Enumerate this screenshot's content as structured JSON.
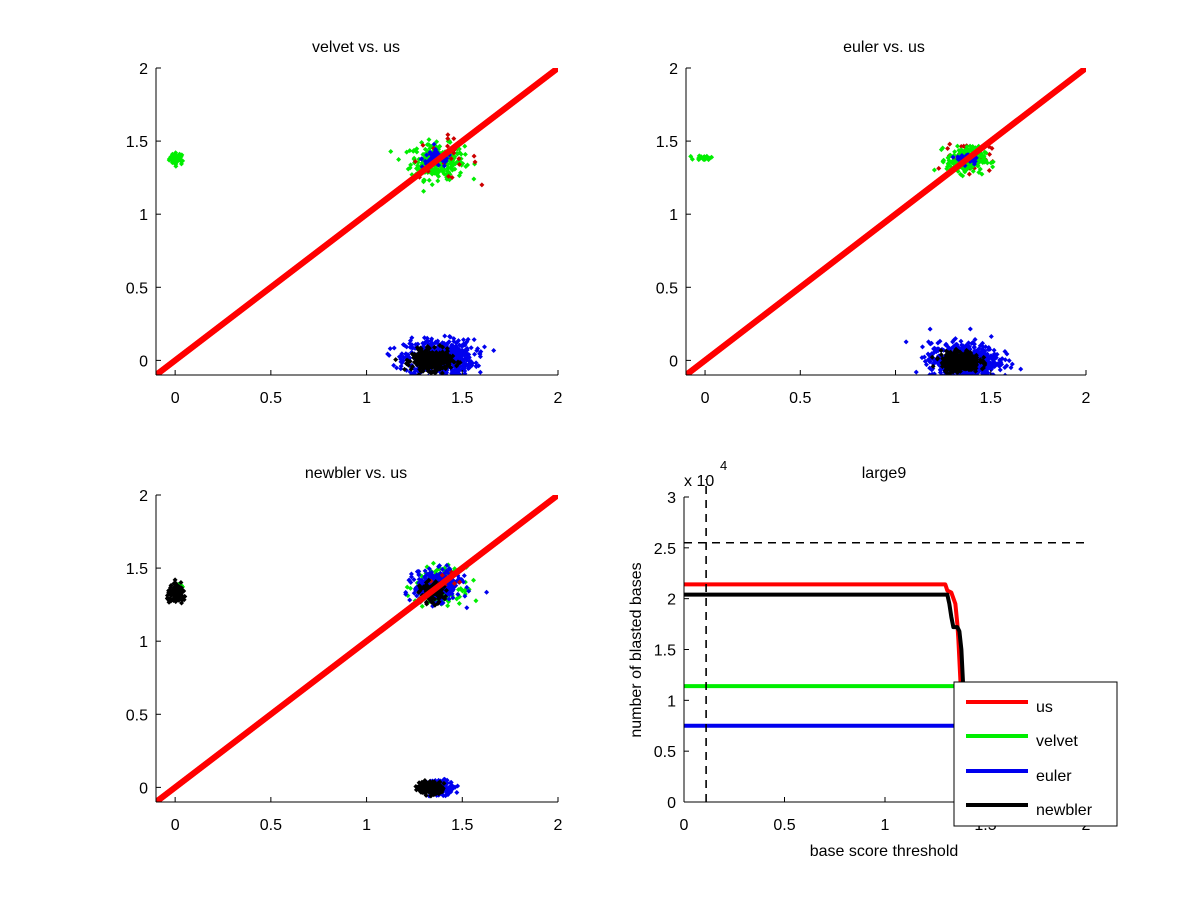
{
  "chart_data": [
    {
      "type": "scatter",
      "id": "velvet-vs-us",
      "title": "velvet vs. us",
      "xlabel": "",
      "ylabel": "",
      "xlim": [
        -0.1,
        2
      ],
      "ylim": [
        -0.1,
        2
      ],
      "xticks": [
        0,
        0.5,
        1,
        1.5,
        2
      ],
      "yticks": [
        0,
        0.5,
        1,
        1.5,
        2
      ],
      "xtick_labels": [
        "0",
        "0.5",
        "1",
        "1.5",
        "2"
      ],
      "ytick_labels": [
        "0",
        "0.5",
        "1",
        "1.5",
        "2"
      ],
      "grid": false,
      "diagonal": {
        "color": "#ff0000",
        "from": [
          -0.1,
          -0.1
        ],
        "to": [
          2,
          2
        ]
      },
      "clusters": [
        {
          "series": "velvet",
          "color": "#00ee00",
          "center": [
            0.01,
            1.38
          ],
          "spread": [
            0.02,
            0.02
          ],
          "count": 40
        },
        {
          "series": "velvet",
          "color": "#00ee00",
          "center": [
            1.37,
            1.36
          ],
          "spread": [
            0.07,
            0.06
          ],
          "count": 260
        },
        {
          "series": "us",
          "color": "#cc0000",
          "center": [
            1.4,
            1.38
          ],
          "spread": [
            0.09,
            0.07
          ],
          "count": 25
        },
        {
          "series": "euler",
          "color": "#0000ee",
          "center": [
            1.37,
            1.38
          ],
          "spread": [
            0.04,
            0.03
          ],
          "count": 70
        },
        {
          "series": "euler",
          "color": "#0000ee",
          "center": [
            1.38,
            0.02
          ],
          "spread": [
            0.09,
            0.06
          ],
          "count": 650
        },
        {
          "series": "newbler",
          "color": "#000000",
          "center": [
            1.34,
            0.0
          ],
          "spread": [
            0.05,
            0.035
          ],
          "count": 350
        }
      ]
    },
    {
      "type": "scatter",
      "id": "euler-vs-us",
      "title": "euler vs. us",
      "xlabel": "",
      "ylabel": "",
      "xlim": [
        -0.1,
        2
      ],
      "ylim": [
        -0.1,
        2
      ],
      "xticks": [
        0,
        0.5,
        1,
        1.5,
        2
      ],
      "yticks": [
        0,
        0.5,
        1,
        1.5,
        2
      ],
      "xtick_labels": [
        "0",
        "0.5",
        "1",
        "1.5",
        "2"
      ],
      "ytick_labels": [
        "0",
        "0.5",
        "1",
        "1.5",
        "2"
      ],
      "grid": false,
      "diagonal": {
        "color": "#ff0000",
        "from": [
          -0.1,
          -0.1
        ],
        "to": [
          2,
          2
        ]
      },
      "clusters": [
        {
          "series": "velvet",
          "color": "#00ee00",
          "center": [
            0.0,
            1.385
          ],
          "spread": [
            0.025,
            0.008
          ],
          "count": 25
        },
        {
          "series": "us",
          "color": "#cc0000",
          "center": [
            1.38,
            1.39
          ],
          "spread": [
            0.06,
            0.05
          ],
          "count": 60
        },
        {
          "series": "velvet",
          "color": "#00ee00",
          "center": [
            1.37,
            1.37
          ],
          "spread": [
            0.05,
            0.045
          ],
          "count": 200
        },
        {
          "series": "euler",
          "color": "#0000ee",
          "center": [
            1.38,
            1.38
          ],
          "spread": [
            0.03,
            0.02
          ],
          "count": 40
        },
        {
          "series": "euler",
          "color": "#0000ee",
          "center": [
            1.36,
            0.0
          ],
          "spread": [
            0.09,
            0.06
          ],
          "count": 700
        },
        {
          "series": "newbler",
          "color": "#000000",
          "center": [
            1.34,
            -0.01
          ],
          "spread": [
            0.05,
            0.035
          ],
          "count": 350
        }
      ]
    },
    {
      "type": "scatter",
      "id": "newbler-vs-us",
      "title": "newbler vs. us",
      "xlabel": "",
      "ylabel": "",
      "xlim": [
        -0.1,
        2
      ],
      "ylim": [
        -0.1,
        2
      ],
      "xticks": [
        0,
        0.5,
        1,
        1.5,
        2
      ],
      "yticks": [
        0,
        0.5,
        1,
        1.5,
        2
      ],
      "xtick_labels": [
        "0",
        "0.5",
        "1",
        "1.5",
        "2"
      ],
      "ytick_labels": [
        "0",
        "0.5",
        "1",
        "1.5",
        "2"
      ],
      "grid": false,
      "diagonal": {
        "color": "#ff0000",
        "from": [
          -0.1,
          -0.1
        ],
        "to": [
          2,
          2
        ]
      },
      "clusters": [
        {
          "series": "velvet",
          "color": "#00ee00",
          "center": [
            0.02,
            1.37
          ],
          "spread": [
            0.015,
            0.015
          ],
          "count": 20
        },
        {
          "series": "newbler",
          "color": "#000000",
          "center": [
            0.01,
            1.32
          ],
          "spread": [
            0.025,
            0.03
          ],
          "count": 110
        },
        {
          "series": "velvet",
          "color": "#00ee00",
          "center": [
            1.38,
            1.38
          ],
          "spread": [
            0.06,
            0.06
          ],
          "count": 200
        },
        {
          "series": "euler",
          "color": "#0000ee",
          "center": [
            1.37,
            1.38
          ],
          "spread": [
            0.06,
            0.05
          ],
          "count": 350
        },
        {
          "series": "us",
          "color": "#cc0000",
          "center": [
            1.42,
            1.42
          ],
          "spread": [
            0.06,
            0.04
          ],
          "count": 6
        },
        {
          "series": "newbler",
          "color": "#000000",
          "center": [
            1.34,
            1.33
          ],
          "spread": [
            0.03,
            0.035
          ],
          "count": 130
        },
        {
          "series": "euler",
          "color": "#0000ee",
          "center": [
            1.38,
            0.0
          ],
          "spread": [
            0.04,
            0.025
          ],
          "count": 150
        },
        {
          "series": "newbler",
          "color": "#000000",
          "center": [
            1.33,
            0.0
          ],
          "spread": [
            0.03,
            0.02
          ],
          "count": 250
        }
      ]
    },
    {
      "type": "line",
      "id": "large9",
      "title": "large9",
      "xlabel": "base score threshold",
      "ylabel": "number of blasted bases",
      "y_multiplier_label": "x 10",
      "y_multiplier_exponent": "4",
      "xlim": [
        0,
        2
      ],
      "ylim": [
        0,
        3
      ],
      "xticks": [
        0,
        0.5,
        1,
        1.5,
        2
      ],
      "yticks": [
        0,
        0.5,
        1,
        1.5,
        2,
        2.5,
        3
      ],
      "xtick_labels": [
        "0",
        "0.5",
        "1",
        "1.5",
        "2"
      ],
      "ytick_labels": [
        "0",
        "0.5",
        "1",
        "1.5",
        "2",
        "2.5",
        "3"
      ],
      "grid": false,
      "legend_position": "bottom-right",
      "reference_lines": [
        {
          "orientation": "horizontal",
          "value": 2.55,
          "style": "dashed",
          "color": "#000000"
        },
        {
          "orientation": "vertical",
          "value": 0.11,
          "style": "dashed",
          "color": "#000000"
        }
      ],
      "series": [
        {
          "name": "us",
          "color": "#ff0000",
          "x": [
            0,
            1.3,
            1.31,
            1.33,
            1.35,
            1.36,
            1.365,
            1.37,
            1.375,
            1.38
          ],
          "y": [
            2.14,
            2.14,
            2.08,
            2.06,
            1.95,
            1.75,
            1.6,
            1.4,
            1.2,
            1.1
          ]
        },
        {
          "name": "velvet",
          "color": "#00ee00",
          "x": [
            0,
            1.36
          ],
          "y": [
            1.14,
            1.14
          ]
        },
        {
          "name": "euler",
          "color": "#0000ee",
          "x": [
            0,
            1.36
          ],
          "y": [
            0.75,
            0.75
          ]
        },
        {
          "name": "newbler",
          "color": "#000000",
          "x": [
            0,
            1.31,
            1.32,
            1.33,
            1.34,
            1.36,
            1.37,
            1.38,
            1.385,
            1.39
          ],
          "y": [
            2.04,
            2.04,
            1.95,
            1.82,
            1.72,
            1.72,
            1.68,
            1.5,
            1.3,
            1.1
          ]
        }
      ]
    }
  ]
}
